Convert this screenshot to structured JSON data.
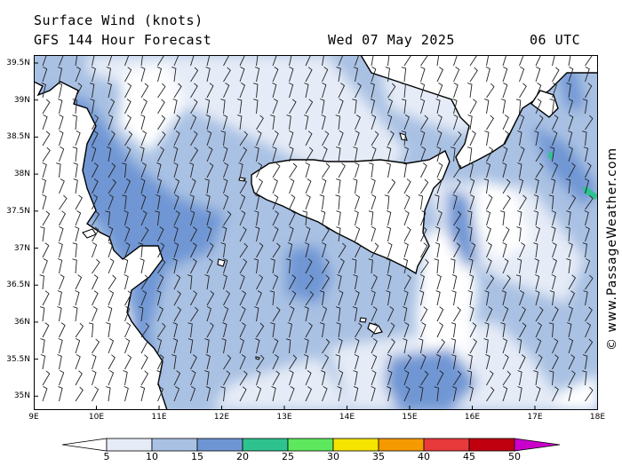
{
  "header": {
    "title": "Surface Wind (knots)",
    "subtitle": "GFS 144 Hour Forecast",
    "date": "Wed 07 May 2025",
    "time": "06 UTC"
  },
  "watermark": "© www.PassageWeather.com",
  "axes": {
    "lat_labels": [
      "39.5N",
      "39N",
      "38.5N",
      "38N",
      "37.5N",
      "37N",
      "36.5N",
      "36N",
      "35.5N",
      "35N"
    ],
    "lon_labels": [
      "9E",
      "10E",
      "11E",
      "12E",
      "13E",
      "14E",
      "15E",
      "16E",
      "17E",
      "18E"
    ]
  },
  "colorbar": {
    "labels": [
      "5",
      "10",
      "15",
      "20",
      "25",
      "30",
      "35",
      "40",
      "45",
      "50"
    ],
    "colors": [
      "#e6ecf7",
      "#a9c1e3",
      "#6f96d4",
      "#2ec28f",
      "#5ee85e",
      "#f5e400",
      "#f59a00",
      "#e83a3a",
      "#c0000f",
      "#cc00cc"
    ],
    "low_color": "#ffffff"
  },
  "colors": {
    "land_line": "#000000",
    "barb": "#222222",
    "bg": "#ffffff"
  }
}
